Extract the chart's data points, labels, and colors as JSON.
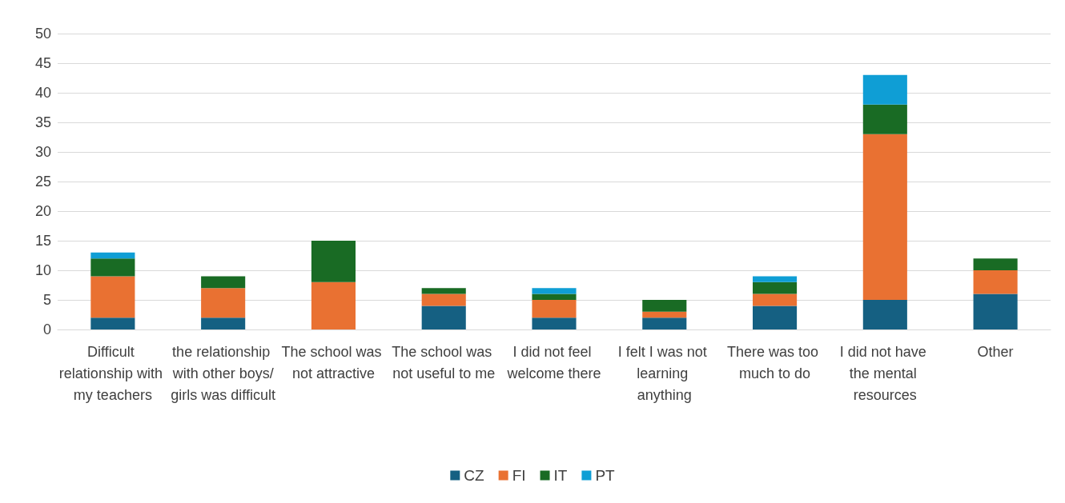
{
  "chart_data": {
    "type": "bar",
    "stacked": true,
    "categories": [
      "Difficult relationship with my teachers",
      "the relationship with other boys/girls was difficult",
      "The school was not attractive",
      "The school was not useful to me",
      "I did not feel welcome there",
      "I felt I was not learning anything",
      "There was too much to do",
      "I did not have the mental resources",
      "Other"
    ],
    "series": [
      {
        "name": "CZ",
        "color": "#156082",
        "values": [
          2,
          2,
          0,
          4,
          2,
          2,
          4,
          5,
          6
        ]
      },
      {
        "name": "FI",
        "color": "#e97132",
        "values": [
          7,
          5,
          8,
          2,
          3,
          1,
          2,
          28,
          4
        ]
      },
      {
        "name": "IT",
        "color": "#196b24",
        "values": [
          3,
          2,
          7,
          1,
          1,
          2,
          2,
          5,
          2
        ]
      },
      {
        "name": "PT",
        "color": "#0f9ed5",
        "values": [
          1,
          0,
          0,
          0,
          1,
          0,
          1,
          5,
          0
        ]
      }
    ],
    "ylim": [
      0,
      50
    ],
    "yticks": [
      0,
      5,
      10,
      15,
      20,
      25,
      30,
      35,
      40,
      45,
      50
    ],
    "grid": "y",
    "legend": "bottom"
  }
}
